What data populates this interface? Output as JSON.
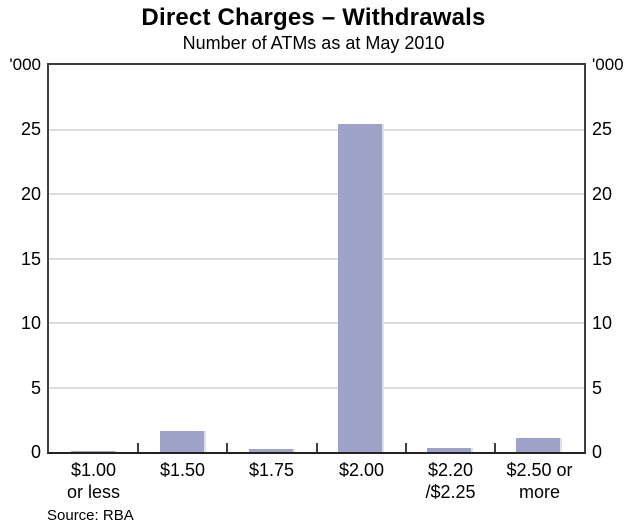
{
  "chart_data": {
    "type": "bar",
    "title": "Direct Charges – Withdrawals",
    "subtitle": "Number of ATMs as at May 2010",
    "unit_label": "'000",
    "categories": [
      {
        "lines": [
          "$1.00",
          "or less"
        ]
      },
      {
        "lines": [
          "$1.50"
        ]
      },
      {
        "lines": [
          "$1.75"
        ]
      },
      {
        "lines": [
          "$2.00"
        ]
      },
      {
        "lines": [
          "$2.20",
          "/$2.25"
        ]
      },
      {
        "lines": [
          "$2.50 or",
          "more"
        ]
      }
    ],
    "values": [
      0.05,
      1.6,
      0.2,
      25.4,
      0.3,
      1.1
    ],
    "ylabel": "",
    "xlabel": "",
    "ylim": [
      0,
      30
    ],
    "yticks": [
      0,
      5,
      10,
      15,
      20,
      25
    ],
    "grid": true,
    "legend_position": "none",
    "bar_color": "#9fa3ca",
    "bar_edge_color": "#dfe0ec",
    "grid_color": "#dcdcdc",
    "axis_color": "#3e3e3e",
    "source": "Source: RBA"
  }
}
